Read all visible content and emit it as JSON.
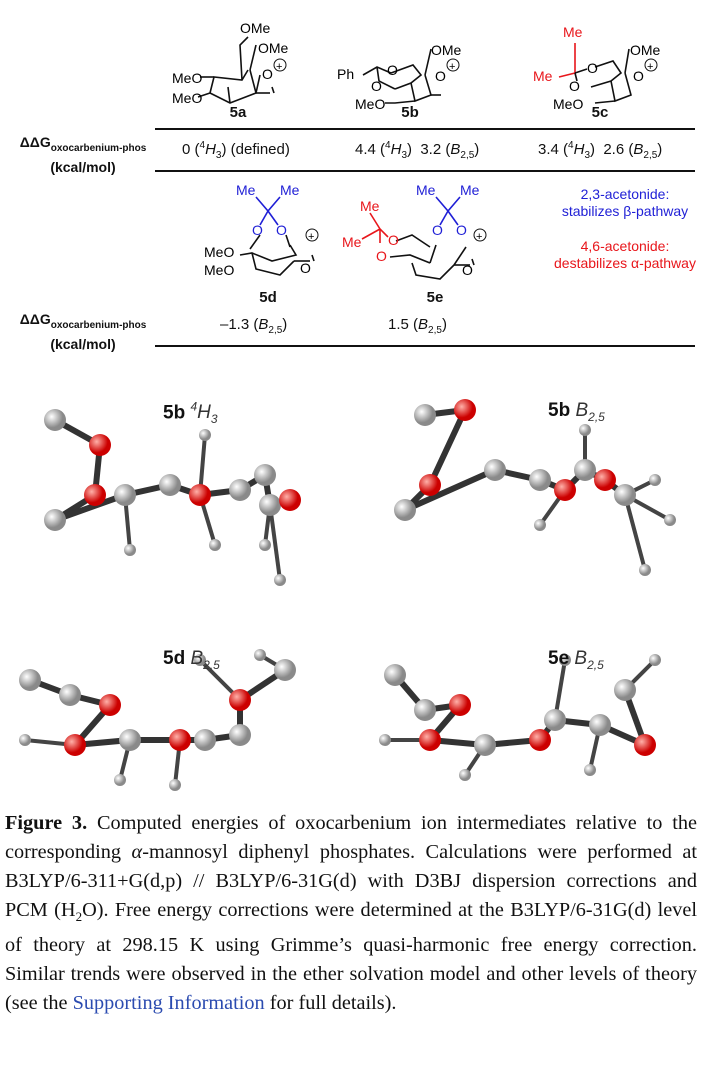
{
  "structures_row1": [
    {
      "id": "5a",
      "labels": [
        "OMe",
        "OMe",
        "MeO",
        "MeO",
        "O"
      ],
      "charge": "+"
    },
    {
      "id": "5b",
      "labels": [
        "Ph",
        "O",
        "O",
        "OMe",
        "MeO",
        "O"
      ],
      "charge": "+"
    },
    {
      "id": "5c",
      "labels": [
        "Me",
        "Me",
        "O",
        "O",
        "OMe",
        "MeO",
        "O"
      ],
      "charge": "+"
    }
  ],
  "structures_row2": [
    {
      "id": "5d",
      "labels": [
        "Me",
        "Me",
        "O",
        "O",
        "MeO",
        "MeO",
        "O"
      ],
      "charge": "+"
    },
    {
      "id": "5e",
      "labels": [
        "Me",
        "Me",
        "Me",
        "Me",
        "O",
        "O",
        "O",
        "O",
        "O"
      ],
      "charge": "+"
    }
  ],
  "table": {
    "row_label_main": "ΔΔG",
    "row_label_sub": "oxocarbenium-phos",
    "row_label_units": "(kcal/mol)",
    "row1": {
      "5a": {
        "value": "0",
        "conf": "4H3",
        "extra": "(defined)"
      },
      "5b": [
        {
          "value": "4.4",
          "conf": "4H3"
        },
        {
          "value": "3.2",
          "conf": "B2,5"
        }
      ],
      "5c": [
        {
          "value": "3.4",
          "conf": "4H3"
        },
        {
          "value": "2.6",
          "conf": "B2,5"
        }
      ]
    },
    "row2": {
      "5d": {
        "value": "–1.3",
        "conf": "B2,5"
      },
      "5e": {
        "value": "1.5",
        "conf": "B2,5"
      }
    }
  },
  "notes": [
    {
      "line1": "2,3-acetonide:",
      "line2": "stabilizes β-pathway",
      "color": "#1f1fd6"
    },
    {
      "line1": "4,6-acetonide:",
      "line2": "destabilizes α-pathway",
      "color": "#e8161b"
    }
  ],
  "models": [
    {
      "id": "5b",
      "conf": "4H3"
    },
    {
      "id": "5b",
      "conf": "B2,5"
    },
    {
      "id": "5d",
      "conf": "B2,5"
    },
    {
      "id": "5e",
      "conf": "B2,5"
    }
  ],
  "caption": {
    "label": "Figure 3.",
    "text_1": " Computed energies of oxocarbenium ion intermediates relative to the corresponding ",
    "alpha": "α",
    "text_2": "-mannosyl diphenyl phosphates. Calculations were performed at B3LYP/6-311+G(d,p) // B3LYP/6-31G(d) with D3BJ dispersion corrections and PCM (H",
    "sub2": "2",
    "text_3": "O). Free energy corrections were determined at the B3LYP/6-31G(d) level of theory at 298.15 K using Grimme’s quasi-harmonic free energy correction. Similar trends were observed in the ether solvation model and other levels of theory (see the ",
    "link": "Supporting Information",
    "text_4": " for full details)."
  },
  "colors": {
    "acetonide_23": "#1f1fd6",
    "acetonide_46": "#e8161b",
    "oxygen_atom": "#e53030",
    "carbon_atom": "#cfcfcf",
    "link": "#2b4bb0"
  }
}
